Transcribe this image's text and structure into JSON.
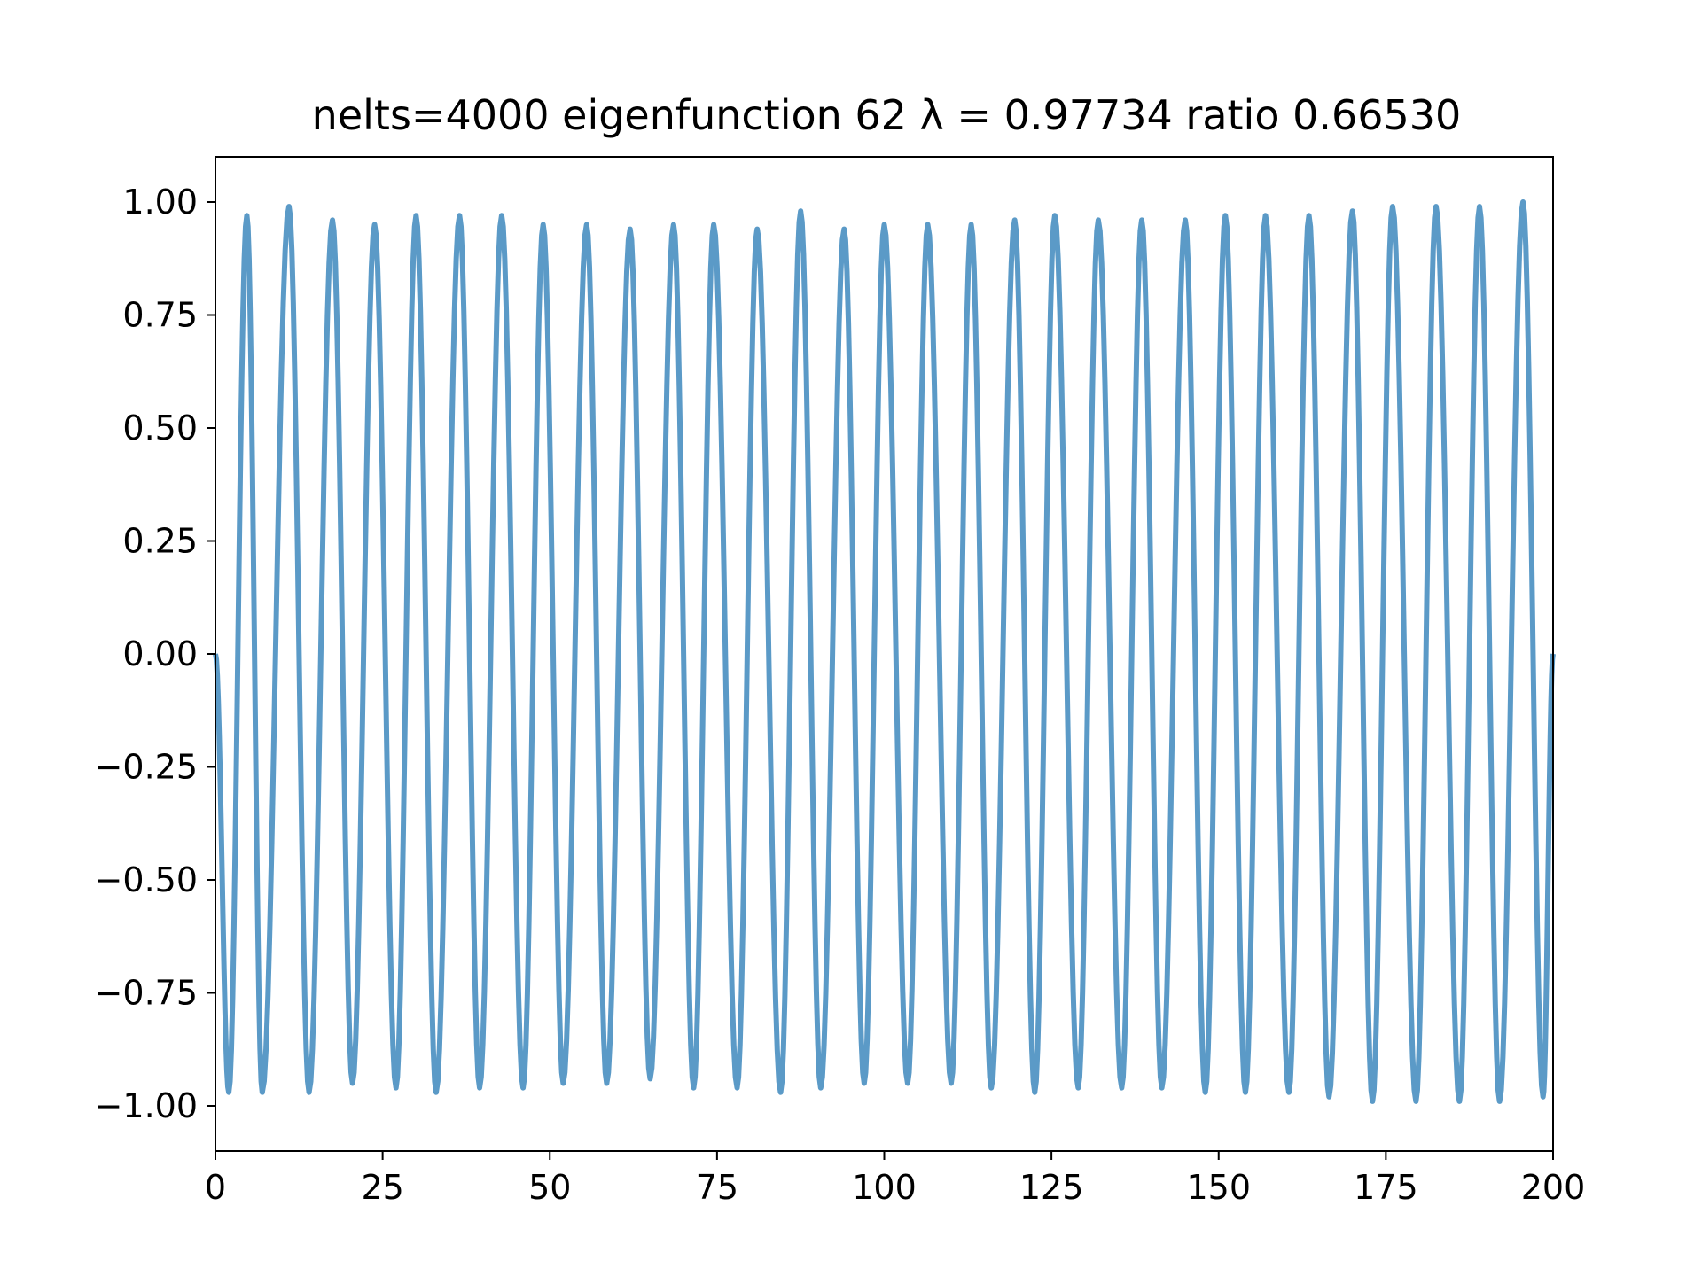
{
  "chart_data": {
    "type": "line",
    "title": "nelts=4000  eigenfunction 62  λ = 0.97734 ratio 0.66530",
    "xlabel": "",
    "ylabel": "",
    "xlim": [
      0,
      200
    ],
    "ylim": [
      -1.1,
      1.1
    ],
    "x_ticks": [
      0,
      25,
      50,
      75,
      100,
      125,
      150,
      175,
      200
    ],
    "x_tick_labels": [
      "0",
      "25",
      "50",
      "75",
      "100",
      "125",
      "150",
      "175",
      "200"
    ],
    "y_ticks": [
      -1.0,
      -0.75,
      -0.5,
      -0.25,
      0.0,
      0.25,
      0.5,
      0.75,
      1.0
    ],
    "y_tick_labels": [
      "−1.00",
      "−0.75",
      "−0.50",
      "−0.25",
      "0.00",
      "0.25",
      "0.50",
      "0.75",
      "1.00"
    ],
    "grid": false,
    "line_color": "#5b9ac7",
    "series": [
      {
        "x": [
          0,
          2.0,
          4.7,
          7.0,
          11.0,
          14.0,
          17.5,
          20.5,
          23.8,
          27.0,
          30.0,
          33.0,
          36.5,
          39.5,
          42.8,
          46.0,
          49.0,
          52.0,
          55.5,
          58.5,
          62.0,
          65.0,
          68.5,
          71.5,
          74.5,
          78.0,
          81.0,
          84.5,
          87.5,
          90.5,
          94.0,
          97.0,
          100.0,
          103.5,
          106.5,
          110.0,
          113.0,
          116.0,
          119.5,
          122.5,
          125.5,
          129.0,
          132.0,
          135.5,
          138.5,
          141.5,
          145.0,
          148.0,
          151.0,
          154.0,
          157.0,
          160.5,
          163.5,
          166.5,
          170.0,
          173.0,
          176.0,
          179.5,
          182.5,
          186.0,
          189.0,
          192.0,
          195.5,
          198.5,
          200
        ],
        "y": [
          0.0,
          -0.97,
          0.97,
          -0.97,
          0.99,
          -0.97,
          0.96,
          -0.95,
          0.95,
          -0.96,
          0.97,
          -0.97,
          0.97,
          -0.96,
          0.97,
          -0.96,
          0.95,
          -0.95,
          0.95,
          -0.95,
          0.94,
          -0.94,
          0.95,
          -0.96,
          0.95,
          -0.96,
          0.94,
          -0.97,
          0.98,
          -0.96,
          0.94,
          -0.95,
          0.95,
          -0.95,
          0.95,
          -0.95,
          0.95,
          -0.96,
          0.96,
          -0.97,
          0.97,
          -0.96,
          0.96,
          -0.96,
          0.96,
          -0.96,
          0.96,
          -0.97,
          0.97,
          -0.97,
          0.97,
          -0.97,
          0.97,
          -0.98,
          0.98,
          -0.99,
          0.99,
          -0.99,
          0.99,
          -0.99,
          0.99,
          -0.99,
          1.0,
          -0.98,
          0.0
        ]
      }
    ]
  }
}
